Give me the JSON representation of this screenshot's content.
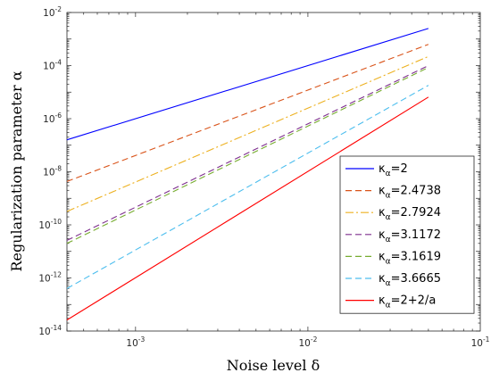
{
  "chart_data": {
    "type": "line",
    "xscale": "log",
    "yscale": "log",
    "xlabel": "Noise level δ",
    "ylabel": "Regularization parameter α",
    "xlim": [
      0.0004,
      0.1
    ],
    "ylim": [
      1e-14,
      0.01
    ],
    "x_ticks": [
      {
        "value": 0.001,
        "base": "10",
        "exp": "-3"
      },
      {
        "value": 0.01,
        "base": "10",
        "exp": "-2"
      },
      {
        "value": 0.1,
        "base": "10",
        "exp": "-1"
      }
    ],
    "y_ticks": [
      {
        "value": 1e-14,
        "base": "10",
        "exp": "-14"
      },
      {
        "value": 1e-12,
        "base": "10",
        "exp": "-12"
      },
      {
        "value": 1e-10,
        "base": "10",
        "exp": "-10"
      },
      {
        "value": 1e-08,
        "base": "10",
        "exp": "-8"
      },
      {
        "value": 1e-06,
        "base": "10",
        "exp": "-6"
      },
      {
        "value": 0.0001,
        "base": "10",
        "exp": "-4"
      },
      {
        "value": 0.01,
        "base": "10",
        "exp": "-2"
      }
    ],
    "grid": false,
    "legend_position": "right",
    "series": [
      {
        "name": "κα=2",
        "prefix": "κ",
        "sub": "α",
        "suffix": "=2",
        "color": "#0000ff",
        "dash": "solid",
        "x": [
          0.0004,
          0.05
        ],
        "y": [
          1.6e-07,
          0.0025
        ]
      },
      {
        "name": "κα=2.4738",
        "prefix": "κ",
        "sub": "α",
        "suffix": "=2.4738",
        "color": "#d95319",
        "dash": "dashed",
        "x": [
          0.0004,
          0.05
        ],
        "y": [
          4.3e-09,
          0.00063
        ]
      },
      {
        "name": "κα=2.7924",
        "prefix": "κ",
        "sub": "α",
        "suffix": "=2.7924",
        "color": "#edb120",
        "dash": "dashdot",
        "x": [
          0.0004,
          0.05
        ],
        "y": [
          3.2e-10,
          0.00022
        ]
      },
      {
        "name": "κα=3.1172",
        "prefix": "κ",
        "sub": "α",
        "suffix": "=3.1172",
        "color": "#7e2f8e",
        "dash": "dashed",
        "x": [
          0.0004,
          0.05
        ],
        "y": [
          2.6e-11,
          0.0001
        ]
      },
      {
        "name": "κα=3.1619",
        "prefix": "κ",
        "sub": "α",
        "suffix": "=3.1619",
        "color": "#77ac30",
        "dash": "dashed",
        "x": [
          0.0004,
          0.05
        ],
        "y": [
          2e-11,
          8.5e-05
        ]
      },
      {
        "name": "κα=3.6665",
        "prefix": "κ",
        "sub": "α",
        "suffix": "=3.6665",
        "color": "#4dbeee",
        "dash": "dashed",
        "x": [
          0.0004,
          0.05
        ],
        "y": [
          4e-13,
          1.8e-05
        ]
      },
      {
        "name": "κα=2+2/a",
        "prefix": "κ",
        "sub": "α",
        "suffix": "=2+2/a",
        "color": "#ff0000",
        "dash": "solid",
        "x": [
          0.0004,
          0.05
        ],
        "y": [
          2.6e-14,
          6.5e-06
        ]
      }
    ]
  }
}
